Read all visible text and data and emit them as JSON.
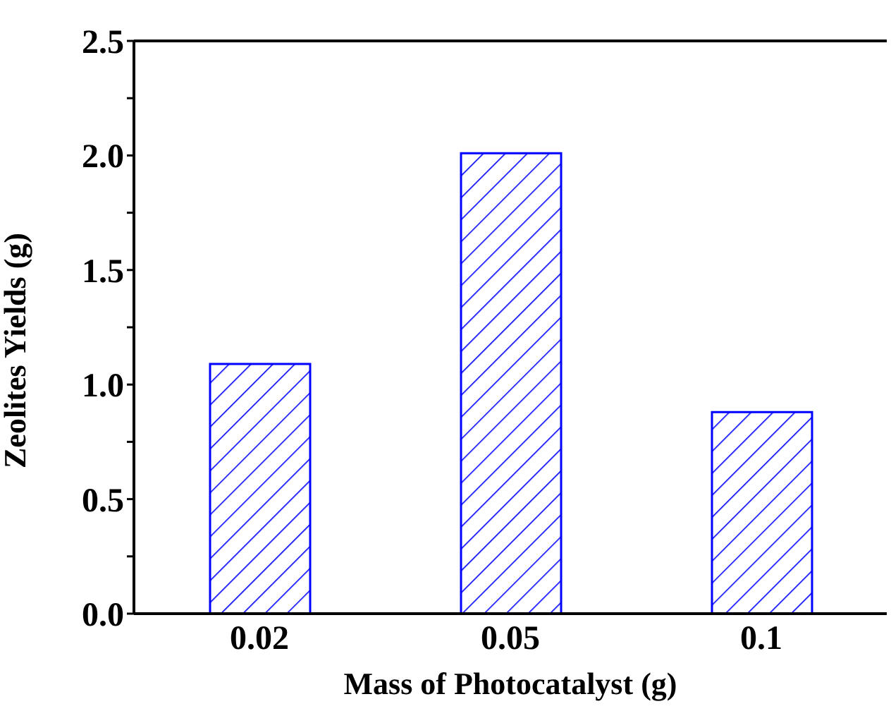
{
  "chart_data": {
    "type": "bar",
    "xlabel": "Mass of Photocatalyst (g)",
    "ylabel": "Zeolites Yields (g)",
    "categories": [
      "0.02",
      "0.05",
      "0.1"
    ],
    "values": [
      1.09,
      2.01,
      0.88
    ],
    "color": "#0000ff",
    "ylim": [
      0,
      2.5
    ],
    "yticks": [
      {
        "value": 0,
        "label": "0.0"
      },
      {
        "value": 0.25,
        "label": null
      },
      0.5,
      {
        "value": 0.75,
        "label": null
      },
      {
        "value": 1,
        "label": "1.0"
      },
      {
        "value": 1.25,
        "label": null
      },
      1.5,
      {
        "value": 1.75,
        "label": null
      },
      {
        "value": 2,
        "label": "2.0"
      },
      {
        "value": 2.25,
        "label": null
      },
      2.5
    ],
    "grid": false,
    "legend": false
  }
}
